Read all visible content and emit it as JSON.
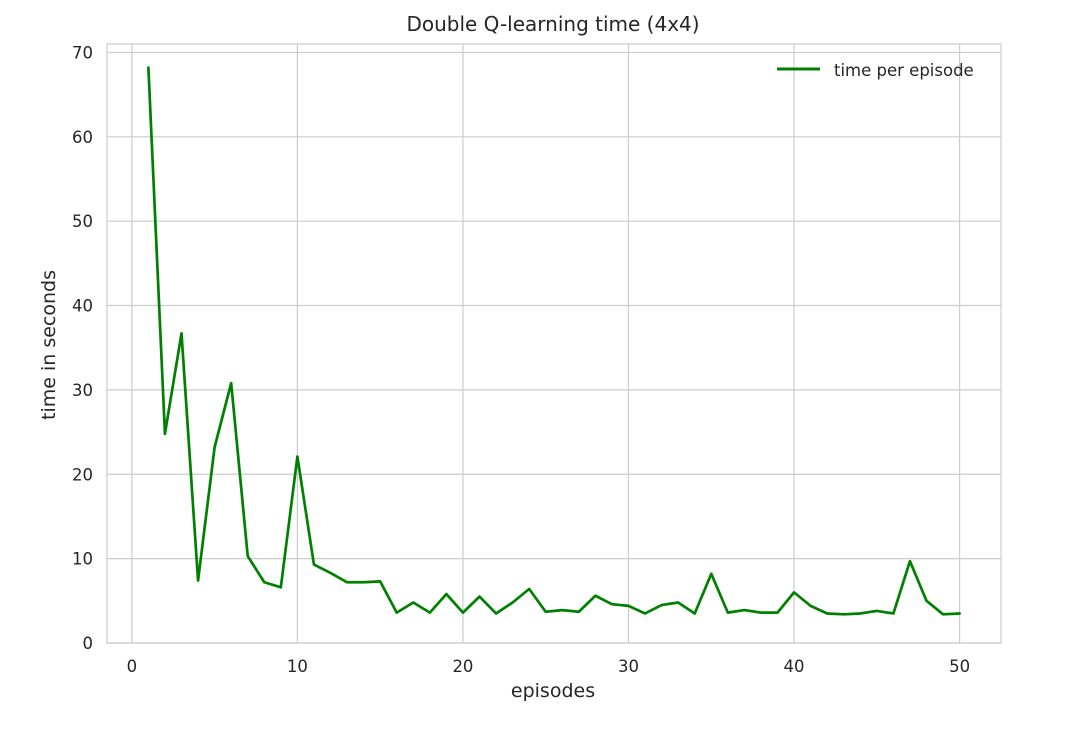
{
  "chart_data": {
    "type": "line",
    "title": "Double Q-learning time (4x4)",
    "xlabel": "episodes",
    "ylabel": "time in seconds",
    "xlim": [
      -1.5,
      52.5
    ],
    "ylim": [
      0,
      71
    ],
    "xticks": [
      0,
      10,
      20,
      30,
      40,
      50
    ],
    "yticks": [
      0,
      10,
      20,
      30,
      40,
      50,
      60,
      70
    ],
    "grid": true,
    "legend_position": "top-right",
    "series": [
      {
        "name": "time per episode",
        "color": "#008000",
        "x": [
          1,
          2,
          3,
          4,
          5,
          6,
          7,
          8,
          9,
          10,
          11,
          12,
          13,
          14,
          15,
          16,
          17,
          18,
          19,
          20,
          21,
          22,
          23,
          24,
          25,
          26,
          27,
          28,
          29,
          30,
          31,
          32,
          33,
          34,
          35,
          36,
          37,
          38,
          39,
          40,
          41,
          42,
          43,
          44,
          45,
          46,
          47,
          48,
          49,
          50
        ],
        "values": [
          68.2,
          24.8,
          36.7,
          7.4,
          23.2,
          30.8,
          10.3,
          7.2,
          6.6,
          22.1,
          9.3,
          8.3,
          7.2,
          7.2,
          7.3,
          3.6,
          4.8,
          3.6,
          5.8,
          3.6,
          5.5,
          3.5,
          4.8,
          6.4,
          3.7,
          3.9,
          3.7,
          5.6,
          4.6,
          4.4,
          3.5,
          4.5,
          4.8,
          3.5,
          8.2,
          3.6,
          3.9,
          3.6,
          3.6,
          6.0,
          4.4,
          3.5,
          3.4,
          3.5,
          3.8,
          3.5,
          9.7,
          5.0,
          3.4,
          3.5
        ]
      }
    ]
  }
}
